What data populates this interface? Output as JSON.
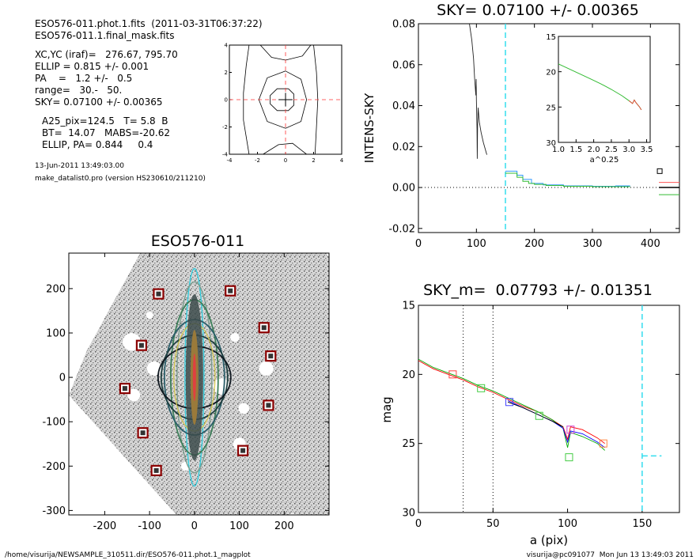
{
  "header": {
    "line1": "ESO576-011.phot.1.fits  (2011-03-31T06:37:22)",
    "line2": "ESO576-011.1.final_mask.fits",
    "params": [
      "XC,YC (iraf)=   276.67, 795.70",
      "ELLIP = 0.815 +/- 0.001",
      "PA    =   1.2 +/-   0.5",
      "range=   30.-   50.",
      "SKY= 0.07100 +/- 0.00365"
    ],
    "extras": [
      "A25_pix=124.5   T= 5.8  B",
      "BT=  14.07   MABS=-20.62",
      "ELLIP, PA= 0.844     0.4"
    ],
    "date": "13-Jun-2011 13:49:03.00",
    "program": "make_datalist0.pro (version HS230610/211210)"
  },
  "footer": {
    "left": "/home/visurija/NEWSAMPLE_310511.dir/ESO576-011.phot.1_magplot",
    "right": "visurija@pc091077  Mon Jun 13 13:49:03 2011"
  },
  "chart_data": [
    {
      "id": "contour",
      "type": "contour",
      "xlim": [
        -4,
        4
      ],
      "ylim": [
        -4,
        4
      ],
      "xticks": [
        -4,
        -2,
        0,
        2,
        4
      ],
      "yticks": [
        -4,
        -2,
        0,
        2,
        4
      ],
      "tick_labels": [
        "-4",
        "-2",
        "0",
        "2",
        "4"
      ],
      "contours": [
        [
          [
            0.2,
            0.8
          ],
          [
            0.6,
            0.4
          ],
          [
            0.6,
            -0.4
          ],
          [
            0.2,
            -0.8
          ],
          [
            -0.6,
            -0.8
          ],
          [
            -1.1,
            -0.3
          ],
          [
            -1.1,
            0.3
          ],
          [
            -0.6,
            0.8
          ],
          [
            0.2,
            0.8
          ]
        ],
        [
          [
            0.0,
            2.1
          ],
          [
            1.1,
            1.5
          ],
          [
            1.5,
            0.0
          ],
          [
            1.1,
            -1.6
          ],
          [
            0.0,
            -2.1
          ],
          [
            -1.3,
            -1.6
          ],
          [
            -1.9,
            0.0
          ],
          [
            -1.3,
            1.6
          ],
          [
            0.0,
            2.1
          ]
        ],
        [
          [
            -2.6,
            4
          ],
          [
            -2.8,
            2.5
          ],
          [
            -3.0,
            0.5
          ],
          [
            -3.0,
            -1.5
          ],
          [
            -2.6,
            -4
          ]
        ],
        [
          [
            2.0,
            4
          ],
          [
            2.2,
            2.0
          ],
          [
            2.3,
            0.0
          ],
          [
            2.2,
            -2.0
          ],
          [
            2.1,
            -4
          ]
        ],
        [
          [
            -1.8,
            4
          ],
          [
            -1.0,
            3.1
          ],
          [
            0.0,
            2.9
          ],
          [
            1.2,
            3.2
          ],
          [
            1.8,
            4
          ]
        ],
        [
          [
            -1.6,
            -4
          ],
          [
            -0.5,
            -3.3
          ],
          [
            0.5,
            -3.2
          ],
          [
            1.5,
            -4
          ]
        ]
      ]
    },
    {
      "id": "intensity",
      "type": "line",
      "title": "SKY= 0.07100 +/- 0.00365",
      "ylabel": "INTENS-SKY",
      "xlim": [
        0,
        450
      ],
      "ylim": [
        -0.022,
        0.08
      ],
      "xticks": [
        0,
        100,
        200,
        300,
        400
      ],
      "xtick_labels": [
        "0",
        "100",
        "200",
        "300",
        "400"
      ],
      "yticks": [
        -0.02,
        0,
        0.02,
        0.04,
        0.06,
        0.08
      ],
      "ytick_labels": [
        "-0.02",
        "0.00",
        "0.02",
        "0.04",
        "0.06",
        "0.08"
      ],
      "vline_x": 150,
      "profile": [
        [
          88,
          0.08
        ],
        [
          92,
          0.072
        ],
        [
          95,
          0.063
        ],
        [
          97,
          0.053
        ],
        [
          99,
          0.045
        ],
        [
          99.5,
          0.053
        ],
        [
          100,
          0.043
        ],
        [
          101,
          0.028
        ],
        [
          101.5,
          0.014
        ],
        [
          102,
          0.03
        ],
        [
          103,
          0.039
        ],
        [
          105,
          0.032
        ],
        [
          108,
          0.027
        ],
        [
          112,
          0.022
        ],
        [
          118,
          0.016
        ]
      ],
      "steps_green": [
        [
          150,
          0.007
        ],
        [
          160,
          0.007
        ],
        [
          170,
          0.005
        ],
        [
          180,
          0.003
        ],
        [
          190,
          0.002
        ],
        [
          200,
          0.0015
        ],
        [
          220,
          0.001
        ],
        [
          250,
          0.0006
        ],
        [
          300,
          0.0004
        ],
        [
          350,
          0.0004
        ],
        [
          365,
          0.0004
        ]
      ],
      "steps_blue": [
        [
          150,
          0.008
        ],
        [
          160,
          0.008
        ],
        [
          170,
          0.006
        ],
        [
          180,
          0.004
        ],
        [
          195,
          0.002
        ],
        [
          215,
          0.0013
        ],
        [
          250,
          0.0008
        ],
        [
          300,
          0.0006
        ],
        [
          340,
          0.0008
        ],
        [
          365,
          0.0008
        ]
      ],
      "sky_marker": {
        "x": 416,
        "y": 0.008
      },
      "inset": {
        "xlabel": "a^0.25",
        "xlim": [
          1.0,
          3.6
        ],
        "ylim": [
          15,
          30
        ],
        "xticks": [
          1.0,
          1.5,
          2.0,
          2.5,
          3.0,
          3.5
        ],
        "xtick_labels": [
          "1.0",
          "1.5",
          "2.0",
          "2.5",
          "3.0",
          "3.5"
        ],
        "yticks": [
          15,
          20,
          25,
          30
        ],
        "ytick_labels": [
          "15",
          "20",
          "25",
          "30"
        ],
        "curve": [
          [
            1.0,
            18.9
          ],
          [
            1.3,
            19.6
          ],
          [
            1.6,
            20.3
          ],
          [
            1.9,
            21.0
          ],
          [
            2.2,
            21.7
          ],
          [
            2.5,
            22.5
          ],
          [
            2.8,
            23.4
          ],
          [
            3.0,
            24.1
          ],
          [
            3.1,
            24.5
          ],
          [
            3.15,
            24.0
          ],
          [
            3.2,
            24.4
          ],
          [
            3.3,
            25.0
          ],
          [
            3.35,
            25.4
          ]
        ]
      }
    },
    {
      "id": "image",
      "type": "image",
      "title": "ESO576-011",
      "xlim": [
        -280,
        300
      ],
      "ylim": [
        -310,
        280
      ],
      "xticks": [
        -200,
        -100,
        0,
        100,
        200
      ],
      "xtick_labels": [
        "-200",
        "-100",
        "0",
        "100",
        "200"
      ],
      "yticks": [
        -300,
        -200,
        -100,
        0,
        100,
        200
      ],
      "ytick_labels": [
        "-300",
        "-200",
        "-100",
        "0",
        "100",
        "200"
      ],
      "stars": [
        [
          -80,
          188
        ],
        [
          80,
          195
        ],
        [
          -118,
          72
        ],
        [
          155,
          112
        ],
        [
          170,
          48
        ],
        [
          -155,
          -25
        ],
        [
          165,
          -63
        ],
        [
          -115,
          -125
        ],
        [
          108,
          -165
        ],
        [
          -85,
          -210
        ]
      ],
      "masked_regions": [
        [
          -140,
          80,
          20
        ],
        [
          -90,
          20,
          16
        ],
        [
          -135,
          -40,
          14
        ],
        [
          60,
          -20,
          18
        ],
        [
          160,
          20,
          16
        ],
        [
          110,
          -70,
          12
        ],
        [
          100,
          -150,
          14
        ],
        [
          -20,
          -200,
          10
        ],
        [
          90,
          90,
          10
        ],
        [
          -100,
          140,
          8
        ]
      ],
      "ellipses": [
        [
          12,
          245
        ],
        [
          22,
          215
        ],
        [
          30,
          175
        ],
        [
          38,
          130
        ],
        [
          42,
          95
        ],
        [
          46,
          70
        ]
      ]
    },
    {
      "id": "magnitude",
      "type": "line",
      "title": "SKY_m=  0.07793 +/- 0.01351",
      "xlabel": "a (pix)",
      "ylabel": "mag",
      "xlim": [
        0,
        175
      ],
      "ylim": [
        15,
        30
      ],
      "y_reversed": true,
      "xticks": [
        0,
        50,
        100,
        150
      ],
      "xtick_labels": [
        "0",
        "50",
        "100",
        "150"
      ],
      "yticks": [
        15,
        20,
        25,
        30
      ],
      "ytick_labels": [
        "15",
        "20",
        "25",
        "30"
      ],
      "vlines_dotted": [
        30,
        50
      ],
      "vline_dashed": 150,
      "sky_level": {
        "x": [
          150,
          163
        ],
        "y": 25.9
      },
      "series": [
        {
          "color": "#ff0000",
          "points": [
            [
              0,
              19.0
            ],
            [
              10,
              19.6
            ],
            [
              20,
              20.0
            ],
            [
              30,
              20.4
            ],
            [
              40,
              20.9
            ],
            [
              50,
              21.3
            ],
            [
              60,
              21.8
            ],
            [
              70,
              22.3
            ],
            [
              80,
              22.7
            ],
            [
              90,
              23.3
            ],
            [
              97,
              23.8
            ],
            [
              100,
              24.7
            ],
            [
              102,
              23.8
            ],
            [
              110,
              24.0
            ],
            [
              120,
              24.6
            ],
            [
              125,
              25.0
            ]
          ]
        },
        {
          "color": "#00aa00",
          "points": [
            [
              0,
              18.9
            ],
            [
              10,
              19.5
            ],
            [
              20,
              19.9
            ],
            [
              30,
              20.3
            ],
            [
              40,
              20.8
            ],
            [
              50,
              21.2
            ],
            [
              60,
              21.7
            ],
            [
              70,
              22.2
            ],
            [
              80,
              22.7
            ],
            [
              90,
              23.3
            ],
            [
              97,
              23.9
            ],
            [
              100,
              25.3
            ],
            [
              102,
              24.2
            ],
            [
              110,
              24.5
            ],
            [
              120,
              25.0
            ],
            [
              125,
              25.5
            ]
          ]
        },
        {
          "color": "#0000ff",
          "points": [
            [
              60,
              21.9
            ],
            [
              70,
              22.4
            ],
            [
              80,
              22.9
            ],
            [
              90,
              23.4
            ],
            [
              97,
              23.9
            ],
            [
              100,
              24.9
            ],
            [
              102,
              24.1
            ],
            [
              110,
              24.3
            ],
            [
              120,
              24.9
            ],
            [
              125,
              25.3
            ]
          ]
        },
        {
          "color": "#000000",
          "points": [
            [
              60,
              22.0
            ],
            [
              70,
              22.4
            ],
            [
              80,
              22.9
            ],
            [
              90,
              23.4
            ],
            [
              97,
              23.8
            ]
          ]
        }
      ],
      "markers": [
        {
          "x": 23,
          "y": 20.0,
          "color": "#ff4444"
        },
        {
          "x": 42,
          "y": 21.0,
          "color": "#44cc44"
        },
        {
          "x": 61,
          "y": 22.0,
          "color": "#4444ff"
        },
        {
          "x": 81,
          "y": 23.0,
          "color": "#44cc44"
        },
        {
          "x": 102,
          "y": 24.0,
          "color": "#cc44cc"
        },
        {
          "x": 101,
          "y": 26.0,
          "color": "#44cc44"
        },
        {
          "x": 124,
          "y": 25.0,
          "color": "#ff8844"
        }
      ]
    }
  ]
}
